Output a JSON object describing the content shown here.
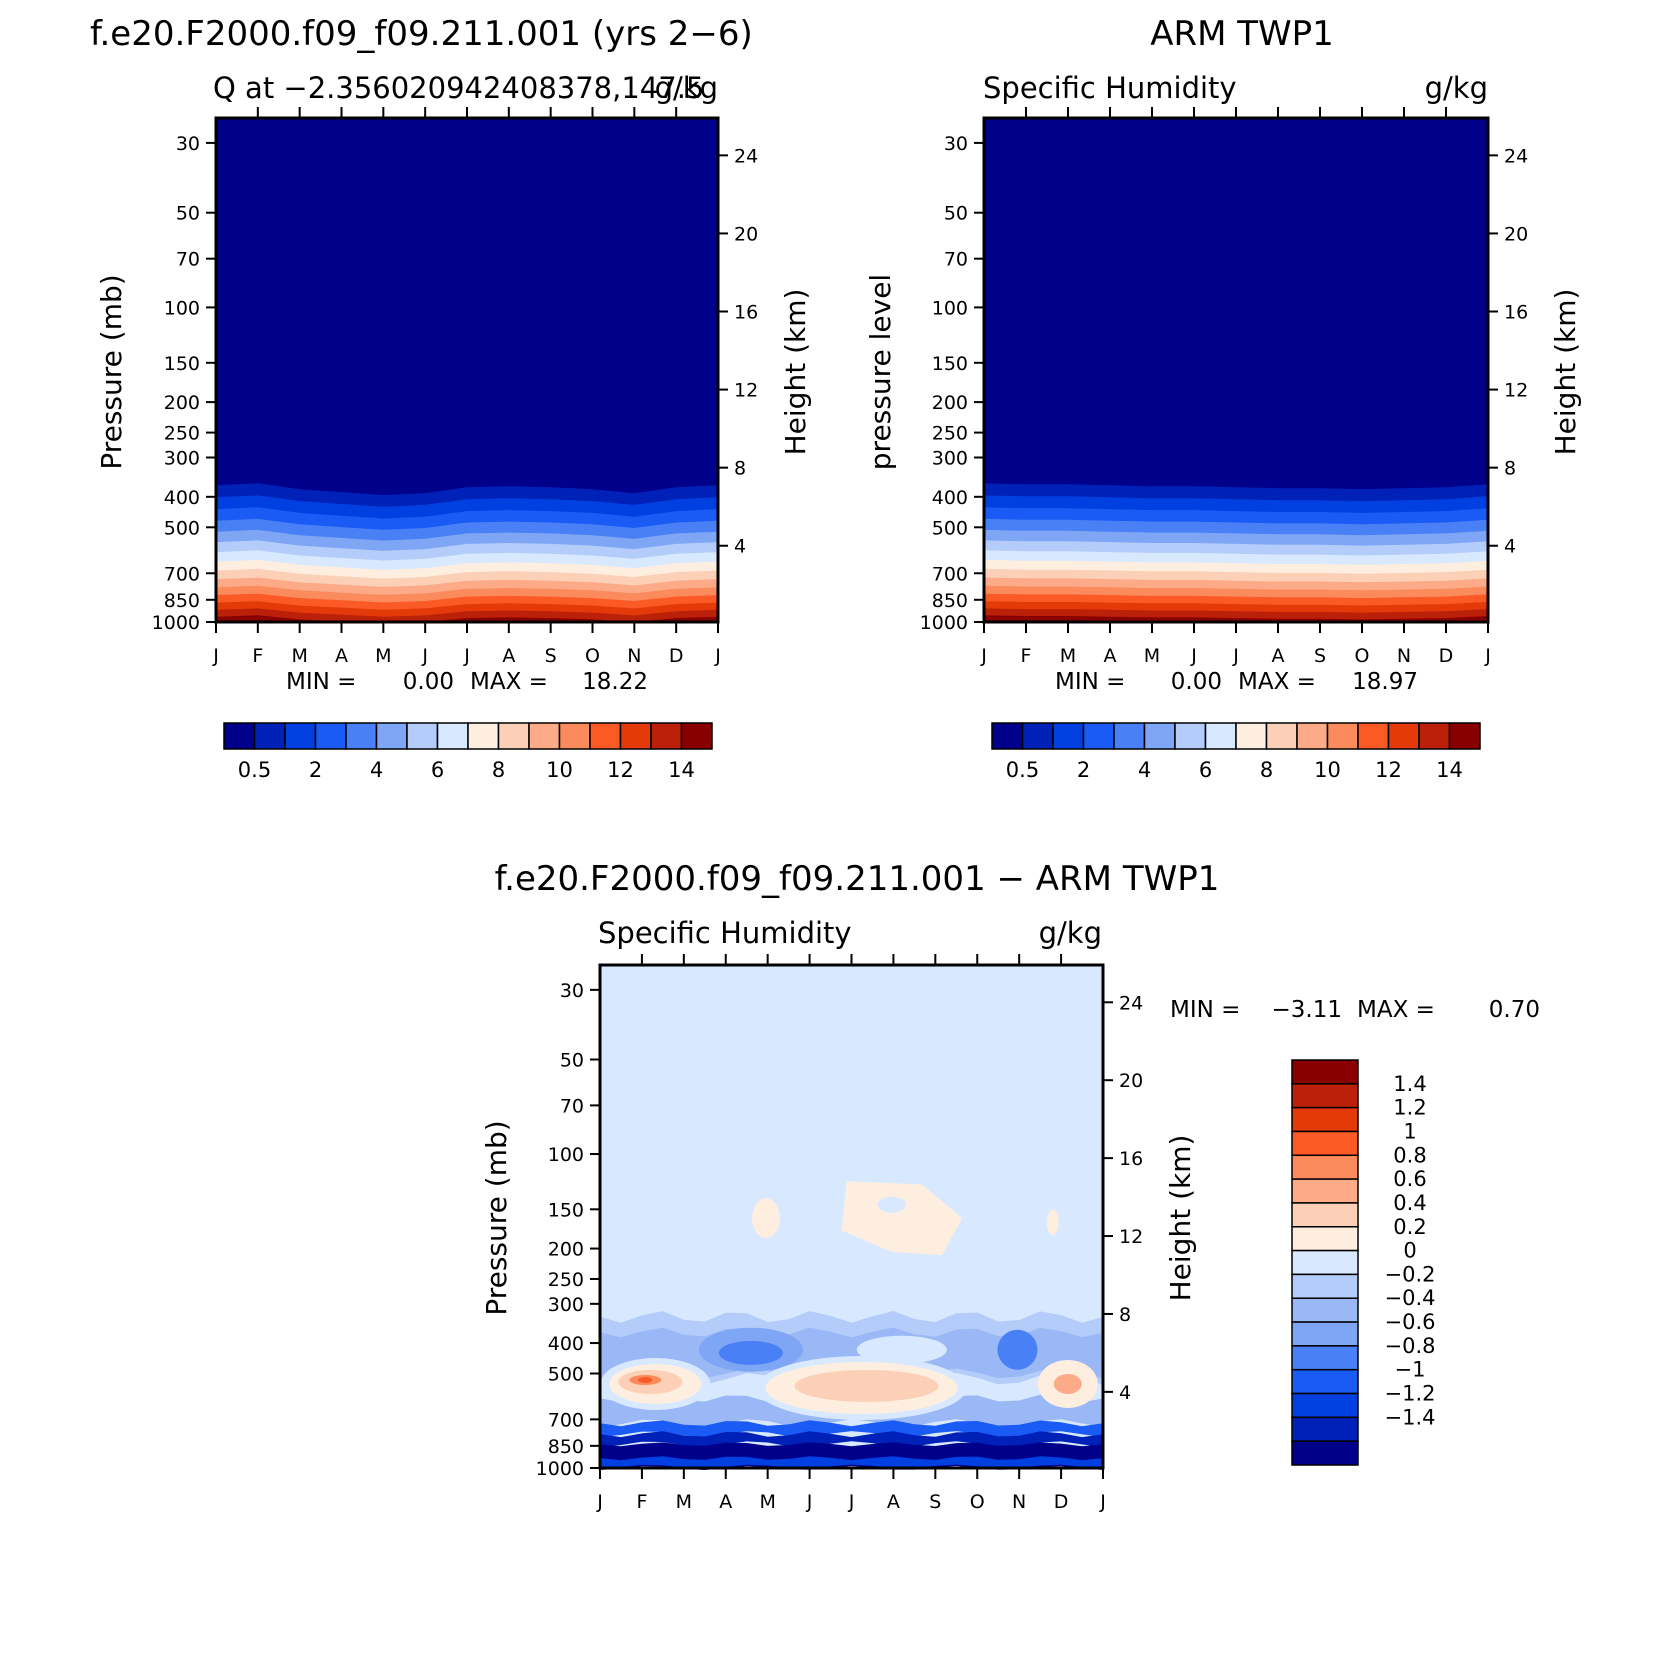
{
  "chart_data": [
    {
      "type": "heatmap",
      "title": "f.e20.F2000.f09_f09.211.001 (yrs 2−6)",
      "left_subtitle": "Q at −2.356020942408378,147.5",
      "right_subtitle": "g/kg",
      "ylabel": "Pressure (mb)",
      "right_ylabel": "Height (km)",
      "stats": {
        "min_label": "MIN =",
        "min": "0.00",
        "max_label": "MAX =",
        "max": "18.22"
      },
      "x_ticks": [
        "J",
        "F",
        "M",
        "A",
        "M",
        "J",
        "J",
        "A",
        "S",
        "O",
        "N",
        "D",
        "J"
      ],
      "y_ticks": [
        "30",
        "50",
        "70",
        "100",
        "150",
        "200",
        "250",
        "300",
        "400",
        "500",
        "700",
        "850",
        "1000"
      ],
      "y_values": [
        30,
        50,
        70,
        100,
        150,
        200,
        250,
        300,
        400,
        500,
        700,
        850,
        1000
      ],
      "height_ticks": [
        "24",
        "20",
        "16",
        "12",
        "8",
        "4"
      ],
      "height_values": [
        24,
        20,
        16,
        12,
        8,
        4
      ],
      "ylim": [
        25,
        1000
      ],
      "y_scale": "log",
      "month_offset": [
        2,
        0,
        6,
        9,
        12,
        10,
        4,
        3,
        4,
        6,
        10,
        4,
        2
      ],
      "colorbar": {
        "orientation": "horizontal",
        "labels": [
          "0.5",
          "2",
          "4",
          "6",
          "8",
          "10",
          "12",
          "14"
        ],
        "levels": [
          0.5,
          1,
          2,
          3,
          4,
          5,
          6,
          7,
          8,
          9,
          10,
          11,
          12,
          13,
          14,
          15
        ]
      }
    },
    {
      "type": "heatmap",
      "title": "ARM TWP1",
      "left_subtitle": "Specific Humidity",
      "right_subtitle": "g/kg",
      "ylabel": "pressure level",
      "right_ylabel": "Height (km)",
      "stats": {
        "min_label": "MIN =",
        "min": "0.00",
        "max_label": "MAX =",
        "max": "18.97"
      },
      "x_ticks": [
        "J",
        "F",
        "M",
        "A",
        "M",
        "J",
        "J",
        "A",
        "S",
        "O",
        "N",
        "D",
        "J"
      ],
      "y_ticks": [
        "30",
        "50",
        "70",
        "100",
        "150",
        "200",
        "250",
        "300",
        "400",
        "500",
        "700",
        "850",
        "1000"
      ],
      "y_values": [
        30,
        50,
        70,
        100,
        150,
        200,
        250,
        300,
        400,
        500,
        700,
        850,
        1000
      ],
      "height_ticks": [
        "24",
        "20",
        "16",
        "12",
        "8",
        "4"
      ],
      "height_values": [
        24,
        20,
        16,
        12,
        8,
        4
      ],
      "ylim": [
        25,
        1000
      ],
      "y_scale": "log",
      "month_offset": [
        0,
        1,
        1,
        2,
        3,
        3,
        4,
        5,
        5,
        6,
        5,
        4,
        1
      ],
      "colorbar": {
        "orientation": "horizontal",
        "labels": [
          "0.5",
          "2",
          "4",
          "6",
          "8",
          "10",
          "12",
          "14"
        ],
        "levels": [
          0.5,
          1,
          2,
          3,
          4,
          5,
          6,
          7,
          8,
          9,
          10,
          11,
          12,
          13,
          14,
          15
        ]
      }
    },
    {
      "type": "heatmap",
      "title": "f.e20.F2000.f09_f09.211.001 − ARM TWP1",
      "left_subtitle": "Specific Humidity",
      "right_subtitle": "g/kg",
      "ylabel": "Pressure (mb)",
      "right_ylabel": "Height (km)",
      "stats": {
        "min_label": "MIN =",
        "min": "−3.11",
        "max_label": "MAX =",
        "max": "0.70"
      },
      "x_ticks": [
        "J",
        "F",
        "M",
        "A",
        "M",
        "J",
        "J",
        "A",
        "S",
        "O",
        "N",
        "D",
        "J"
      ],
      "y_ticks": [
        "30",
        "50",
        "70",
        "100",
        "150",
        "200",
        "250",
        "300",
        "400",
        "500",
        "700",
        "850",
        "1000"
      ],
      "y_values": [
        30,
        50,
        70,
        100,
        150,
        200,
        250,
        300,
        400,
        500,
        700,
        850,
        1000
      ],
      "height_ticks": [
        "24",
        "20",
        "16",
        "12",
        "8",
        "4"
      ],
      "height_values": [
        24,
        20,
        16,
        12,
        8,
        4
      ],
      "ylim": [
        25,
        1000
      ],
      "y_scale": "log",
      "colorbar": {
        "orientation": "vertical",
        "labels": [
          "1.4",
          "1.2",
          "1",
          "0.8",
          "0.6",
          "0.4",
          "0.2",
          "0",
          "−0.2",
          "−0.4",
          "−0.6",
          "−0.8",
          "−1",
          "−1.2",
          "−1.4"
        ],
        "levels": [
          1.4,
          1.2,
          1,
          0.8,
          0.6,
          0.4,
          0.2,
          0,
          -0.2,
          -0.4,
          -0.6,
          -0.8,
          -1,
          -1.2,
          -1.4
        ]
      }
    }
  ],
  "colors": {
    "seq": [
      "#00008b",
      "#0021b8",
      "#0040e0",
      "#1a5af5",
      "#4a80f5",
      "#7ea6f5",
      "#b4ccfa",
      "#d8e8ff",
      "#fdeee0",
      "#fcd0b6",
      "#fcaa88",
      "#fb8a5c",
      "#fb5a26",
      "#e43a0a",
      "#bb2008",
      "#880000"
    ],
    "div_pos": [
      "#880000",
      "#bb2008",
      "#e43a0a",
      "#fb5a26",
      "#fb8a5c",
      "#fcaa88",
      "#fcd0b6",
      "#fdeee0"
    ],
    "div_neg": [
      "#d8e8ff",
      "#b4ccfa",
      "#9ab8f6",
      "#7ea6f5",
      "#4a80f5",
      "#1a5af5",
      "#0040e0",
      "#0021b8",
      "#00008b"
    ]
  }
}
